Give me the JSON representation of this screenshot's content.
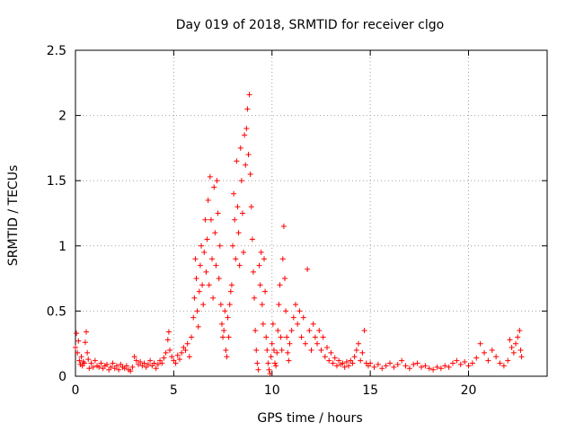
{
  "chart_data": {
    "type": "scatter",
    "title": "Day 019 of 2018, SRMTID for receiver clgo",
    "xlabel": "GPS time / hours",
    "ylabel": "SRMTID / TECUs",
    "xlim": [
      0,
      24
    ],
    "ylim": [
      0,
      2.5
    ],
    "x_ticks": [
      0,
      5,
      10,
      15,
      20
    ],
    "x_tick_labels": [
      "0",
      "5",
      "10",
      "15",
      "20"
    ],
    "y_ticks": [
      0,
      0.5,
      1,
      1.5,
      2,
      2.5
    ],
    "y_tick_labels": [
      "0",
      "0.5",
      "1",
      "1.5",
      "2",
      "2.5"
    ],
    "grid": true,
    "marker": "plus",
    "color": "#ff0000",
    "series": [
      {
        "name": "SRMTID",
        "points": [
          [
            0.0,
            0.22
          ],
          [
            0.05,
            0.33
          ],
          [
            0.1,
            0.18
          ],
          [
            0.15,
            0.27
          ],
          [
            0.2,
            0.12
          ],
          [
            0.25,
            0.09
          ],
          [
            0.3,
            0.15
          ],
          [
            0.35,
            0.08
          ],
          [
            0.4,
            0.11
          ],
          [
            0.45,
            0.1
          ],
          [
            0.5,
            0.26
          ],
          [
            0.55,
            0.34
          ],
          [
            0.6,
            0.18
          ],
          [
            0.65,
            0.13
          ],
          [
            0.7,
            0.06
          ],
          [
            0.8,
            0.1
          ],
          [
            0.9,
            0.07
          ],
          [
            1.0,
            0.12
          ],
          [
            1.1,
            0.08
          ],
          [
            1.2,
            0.07
          ],
          [
            1.3,
            0.1
          ],
          [
            1.4,
            0.06
          ],
          [
            1.5,
            0.08
          ],
          [
            1.6,
            0.09
          ],
          [
            1.7,
            0.05
          ],
          [
            1.8,
            0.07
          ],
          [
            1.9,
            0.1
          ],
          [
            2.0,
            0.06
          ],
          [
            2.1,
            0.08
          ],
          [
            2.2,
            0.05
          ],
          [
            2.3,
            0.09
          ],
          [
            2.4,
            0.07
          ],
          [
            2.5,
            0.06
          ],
          [
            2.6,
            0.08
          ],
          [
            2.7,
            0.05
          ],
          [
            2.8,
            0.04
          ],
          [
            2.9,
            0.07
          ],
          [
            3.0,
            0.15
          ],
          [
            3.1,
            0.12
          ],
          [
            3.2,
            0.09
          ],
          [
            3.3,
            0.11
          ],
          [
            3.4,
            0.08
          ],
          [
            3.5,
            0.1
          ],
          [
            3.6,
            0.07
          ],
          [
            3.7,
            0.09
          ],
          [
            3.8,
            0.12
          ],
          [
            3.9,
            0.08
          ],
          [
            4.0,
            0.1
          ],
          [
            4.1,
            0.06
          ],
          [
            4.2,
            0.09
          ],
          [
            4.3,
            0.12
          ],
          [
            4.4,
            0.1
          ],
          [
            4.5,
            0.14
          ],
          [
            4.6,
            0.18
          ],
          [
            4.7,
            0.28
          ],
          [
            4.75,
            0.34
          ],
          [
            4.8,
            0.2
          ],
          [
            4.9,
            0.15
          ],
          [
            5.0,
            0.12
          ],
          [
            5.1,
            0.1
          ],
          [
            5.2,
            0.16
          ],
          [
            5.3,
            0.13
          ],
          [
            5.4,
            0.18
          ],
          [
            5.5,
            0.22
          ],
          [
            5.6,
            0.2
          ],
          [
            5.7,
            0.25
          ],
          [
            5.8,
            0.15
          ],
          [
            5.9,
            0.3
          ],
          [
            6.0,
            0.45
          ],
          [
            6.05,
            0.6
          ],
          [
            6.1,
            0.9
          ],
          [
            6.15,
            0.75
          ],
          [
            6.2,
            0.5
          ],
          [
            6.25,
            0.38
          ],
          [
            6.3,
            0.65
          ],
          [
            6.35,
            0.85
          ],
          [
            6.4,
            1.0
          ],
          [
            6.45,
            0.7
          ],
          [
            6.5,
            0.55
          ],
          [
            6.55,
            0.95
          ],
          [
            6.6,
            1.2
          ],
          [
            6.65,
            0.8
          ],
          [
            6.7,
            1.05
          ],
          [
            6.75,
            1.35
          ],
          [
            6.8,
            0.7
          ],
          [
            6.85,
            1.53
          ],
          [
            6.9,
            1.2
          ],
          [
            6.95,
            0.9
          ],
          [
            7.0,
            0.6
          ],
          [
            7.05,
            1.45
          ],
          [
            7.1,
            1.1
          ],
          [
            7.15,
            0.85
          ],
          [
            7.2,
            1.5
          ],
          [
            7.25,
            1.25
          ],
          [
            7.3,
            0.75
          ],
          [
            7.35,
            1.0
          ],
          [
            7.4,
            0.55
          ],
          [
            7.45,
            0.4
          ],
          [
            7.5,
            0.3
          ],
          [
            7.55,
            0.35
          ],
          [
            7.6,
            0.5
          ],
          [
            7.65,
            0.2
          ],
          [
            7.7,
            0.15
          ],
          [
            7.75,
            0.45
          ],
          [
            7.8,
            0.3
          ],
          [
            7.85,
            0.55
          ],
          [
            7.9,
            0.65
          ],
          [
            7.95,
            0.7
          ],
          [
            8.0,
            1.0
          ],
          [
            8.05,
            1.4
          ],
          [
            8.1,
            1.2
          ],
          [
            8.15,
            0.9
          ],
          [
            8.2,
            1.65
          ],
          [
            8.25,
            1.3
          ],
          [
            8.3,
            1.1
          ],
          [
            8.35,
            0.85
          ],
          [
            8.4,
            1.75
          ],
          [
            8.45,
            1.5
          ],
          [
            8.5,
            1.25
          ],
          [
            8.55,
            0.95
          ],
          [
            8.6,
            1.85
          ],
          [
            8.65,
            1.62
          ],
          [
            8.7,
            1.9
          ],
          [
            8.75,
            2.05
          ],
          [
            8.8,
            1.7
          ],
          [
            8.85,
            2.16
          ],
          [
            8.9,
            1.55
          ],
          [
            8.95,
            1.3
          ],
          [
            9.0,
            1.05
          ],
          [
            9.05,
            0.8
          ],
          [
            9.1,
            0.6
          ],
          [
            9.15,
            0.35
          ],
          [
            9.2,
            0.2
          ],
          [
            9.25,
            0.1
          ],
          [
            9.3,
            0.05
          ],
          [
            9.35,
            0.85
          ],
          [
            9.4,
            0.7
          ],
          [
            9.45,
            0.95
          ],
          [
            9.5,
            0.55
          ],
          [
            9.55,
            0.4
          ],
          [
            9.6,
            0.9
          ],
          [
            9.65,
            0.65
          ],
          [
            9.7,
            0.3
          ],
          [
            9.75,
            0.2
          ],
          [
            9.8,
            0.1
          ],
          [
            9.85,
            0.05
          ],
          [
            9.9,
            0.02
          ],
          [
            9.95,
            0.15
          ],
          [
            10.0,
            0.25
          ],
          [
            10.05,
            0.4
          ],
          [
            10.1,
            0.2
          ],
          [
            10.15,
            0.1
          ],
          [
            10.2,
            0.08
          ],
          [
            10.25,
            0.18
          ],
          [
            10.3,
            0.35
          ],
          [
            10.35,
            0.55
          ],
          [
            10.4,
            0.7
          ],
          [
            10.45,
            0.3
          ],
          [
            10.5,
            0.2
          ],
          [
            10.55,
            0.9
          ],
          [
            10.6,
            1.15
          ],
          [
            10.65,
            0.75
          ],
          [
            10.7,
            0.5
          ],
          [
            10.75,
            0.3
          ],
          [
            10.8,
            0.18
          ],
          [
            10.85,
            0.12
          ],
          [
            10.9,
            0.25
          ],
          [
            11.0,
            0.35
          ],
          [
            11.1,
            0.45
          ],
          [
            11.2,
            0.55
          ],
          [
            11.3,
            0.4
          ],
          [
            11.4,
            0.5
          ],
          [
            11.5,
            0.3
          ],
          [
            11.6,
            0.45
          ],
          [
            11.7,
            0.25
          ],
          [
            11.8,
            0.82
          ],
          [
            11.9,
            0.35
          ],
          [
            12.0,
            0.2
          ],
          [
            12.1,
            0.4
          ],
          [
            12.2,
            0.3
          ],
          [
            12.3,
            0.25
          ],
          [
            12.4,
            0.35
          ],
          [
            12.5,
            0.2
          ],
          [
            12.6,
            0.3
          ],
          [
            12.7,
            0.15
          ],
          [
            12.8,
            0.22
          ],
          [
            12.9,
            0.12
          ],
          [
            13.0,
            0.18
          ],
          [
            13.1,
            0.1
          ],
          [
            13.2,
            0.14
          ],
          [
            13.3,
            0.08
          ],
          [
            13.4,
            0.12
          ],
          [
            13.5,
            0.09
          ],
          [
            13.6,
            0.1
          ],
          [
            13.7,
            0.07
          ],
          [
            13.8,
            0.11
          ],
          [
            13.9,
            0.08
          ],
          [
            14.0,
            0.12
          ],
          [
            14.1,
            0.1
          ],
          [
            14.2,
            0.15
          ],
          [
            14.3,
            0.2
          ],
          [
            14.4,
            0.25
          ],
          [
            14.5,
            0.12
          ],
          [
            14.6,
            0.18
          ],
          [
            14.7,
            0.35
          ],
          [
            14.8,
            0.1
          ],
          [
            14.9,
            0.08
          ],
          [
            15.0,
            0.1
          ],
          [
            15.2,
            0.07
          ],
          [
            15.4,
            0.09
          ],
          [
            15.6,
            0.06
          ],
          [
            15.8,
            0.08
          ],
          [
            16.0,
            0.1
          ],
          [
            16.2,
            0.07
          ],
          [
            16.4,
            0.09
          ],
          [
            16.6,
            0.12
          ],
          [
            16.8,
            0.08
          ],
          [
            17.0,
            0.06
          ],
          [
            17.2,
            0.09
          ],
          [
            17.4,
            0.1
          ],
          [
            17.6,
            0.07
          ],
          [
            17.8,
            0.08
          ],
          [
            18.0,
            0.06
          ],
          [
            18.2,
            0.05
          ],
          [
            18.4,
            0.07
          ],
          [
            18.6,
            0.06
          ],
          [
            18.8,
            0.08
          ],
          [
            19.0,
            0.07
          ],
          [
            19.2,
            0.1
          ],
          [
            19.4,
            0.12
          ],
          [
            19.6,
            0.09
          ],
          [
            19.8,
            0.11
          ],
          [
            20.0,
            0.08
          ],
          [
            20.2,
            0.1
          ],
          [
            20.4,
            0.14
          ],
          [
            20.6,
            0.25
          ],
          [
            20.8,
            0.18
          ],
          [
            21.0,
            0.12
          ],
          [
            21.2,
            0.2
          ],
          [
            21.4,
            0.15
          ],
          [
            21.6,
            0.1
          ],
          [
            21.8,
            0.08
          ],
          [
            22.0,
            0.12
          ],
          [
            22.1,
            0.28
          ],
          [
            22.2,
            0.22
          ],
          [
            22.3,
            0.18
          ],
          [
            22.4,
            0.25
          ],
          [
            22.5,
            0.3
          ],
          [
            22.6,
            0.35
          ],
          [
            22.65,
            0.2
          ],
          [
            22.7,
            0.15
          ]
        ]
      }
    ]
  }
}
